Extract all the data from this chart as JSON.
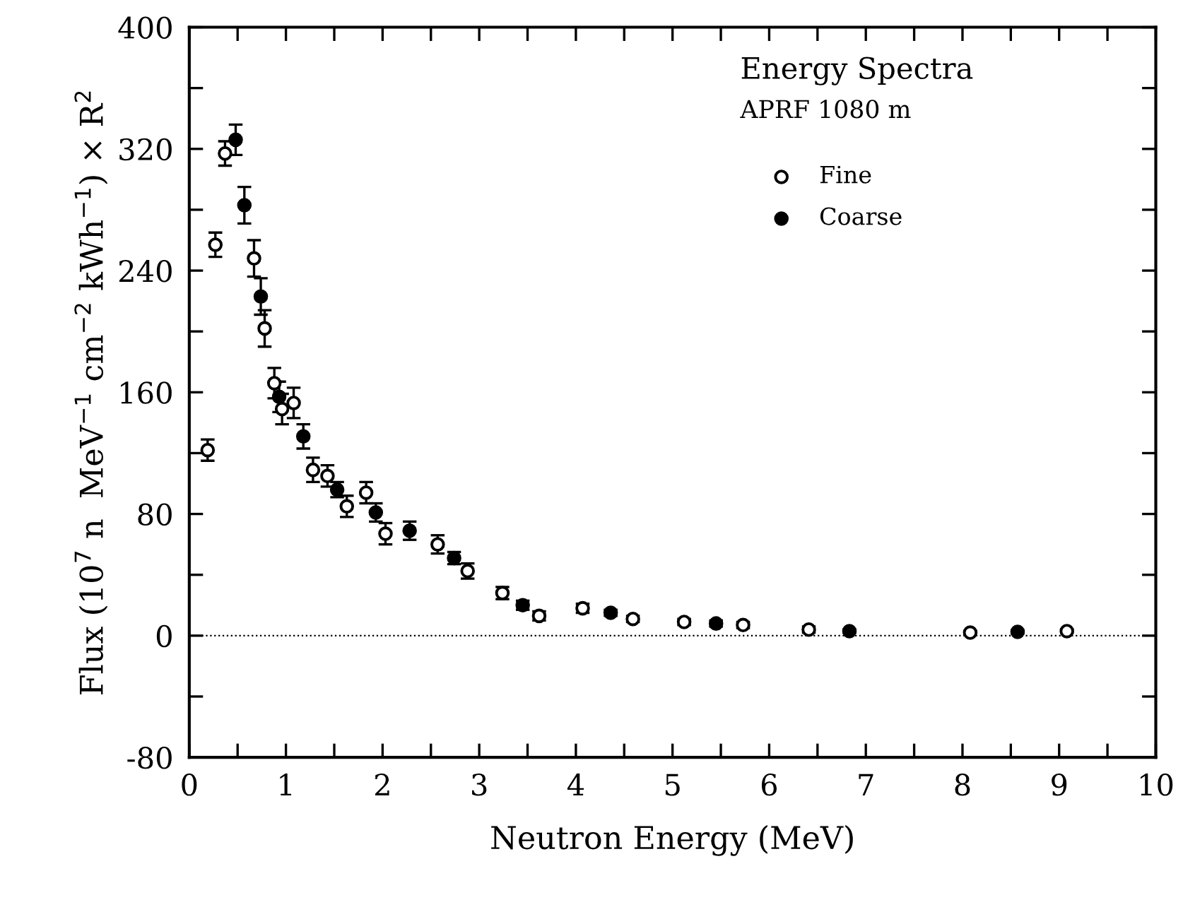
{
  "chart_data": {
    "type": "scatter",
    "xlabel": "Neutron Energy (MeV)",
    "ylabel": "Flux (10$^{7}$ n  MeV$^{−1}$ cm$^{−2}$ kWh$^{−1}$) × R$^{2}$",
    "annotations": [
      "Energy Spectra",
      "APRF 1080 m"
    ],
    "series": [
      {
        "name": "Fine",
        "color": "#ffffff",
        "x": [
          0.19,
          0.27,
          0.37,
          0.67,
          0.78,
          0.88,
          0.96,
          1.08,
          1.28,
          1.43,
          1.63,
          1.83,
          2.03,
          2.57,
          2.88,
          3.24,
          3.62,
          4.07,
          4.59,
          5.12,
          5.73,
          6.41,
          8.08,
          9.08
        ],
        "values": [
          122,
          257,
          317,
          248,
          202,
          166,
          149,
          153,
          109,
          105,
          85,
          94,
          67,
          60,
          42.5,
          28,
          13,
          18,
          11,
          9,
          7,
          4,
          2,
          3
        ],
        "errors": [
          7,
          8,
          8,
          12,
          12,
          10,
          10,
          10,
          8,
          7,
          7,
          7,
          7,
          6,
          5,
          4,
          3,
          3,
          2,
          2,
          2,
          2,
          1,
          1
        ]
      },
      {
        "name": "Coarse",
        "color": "#000000",
        "x": [
          0.48,
          0.57,
          0.74,
          0.93,
          1.18,
          1.53,
          1.93,
          2.28,
          2.74,
          3.45,
          4.36,
          5.45,
          6.83,
          8.57
        ],
        "values": [
          326,
          283,
          223,
          157,
          131,
          96,
          81,
          69,
          51,
          20,
          15,
          8,
          3,
          2.5
        ],
        "errors": [
          10,
          12,
          12,
          10,
          8,
          5,
          6,
          6,
          4,
          3,
          2,
          2,
          1,
          1
        ]
      }
    ],
    "xlim": [
      0,
      10
    ],
    "ylim": [
      -80,
      400
    ],
    "xticks": [
      0,
      {
        "value": 0.5,
        "label": null
      },
      1,
      {
        "value": 1.5,
        "label": null
      },
      2,
      {
        "value": 2.5,
        "label": null
      },
      3,
      {
        "value": 3.5,
        "label": null
      },
      4,
      {
        "value": 4.5,
        "label": null
      },
      5,
      {
        "value": 5.5,
        "label": null
      },
      6,
      {
        "value": 6.5,
        "label": null
      },
      7,
      {
        "value": 7.5,
        "label": null
      },
      8,
      {
        "value": 8.5,
        "label": null
      },
      9,
      {
        "value": 9.5,
        "label": null
      },
      10
    ],
    "yticks": [
      -80,
      {
        "value": -40,
        "label": null
      },
      0,
      {
        "value": 40,
        "label": null
      },
      80,
      {
        "value": 120,
        "label": null
      },
      160,
      {
        "value": 200,
        "label": null
      },
      240,
      {
        "value": 280,
        "label": null
      },
      320,
      {
        "value": 360,
        "label": null
      },
      400
    ],
    "ref_lines": [
      {
        "axis": "y",
        "value": 0,
        "line_style": "dotted",
        "color": "#000000"
      }
    ],
    "marker": "circle",
    "legend": "top right",
    "grid": false
  }
}
